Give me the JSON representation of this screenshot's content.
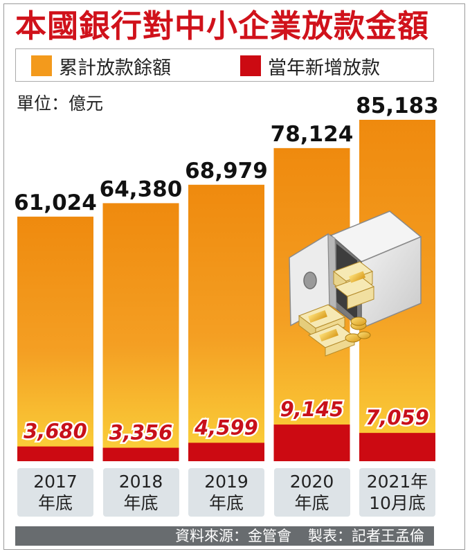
{
  "title": "本國銀行對中小企業放款金額",
  "legend": [
    {
      "label": "累計放款餘額",
      "color": "#f39a1c"
    },
    {
      "label": "當年新增放款",
      "color": "#cc0a12"
    }
  ],
  "unit": "單位：億元",
  "source": {
    "data_source": "資料來源：金管會",
    "made_by": "製表：記者王孟倫"
  },
  "chart_data": {
    "type": "bar",
    "title": "本國銀行對中小企業放款金額",
    "unit": "億元",
    "categories": [
      {
        "line1": "2017",
        "line2": "年底"
      },
      {
        "line1": "2018",
        "line2": "年底"
      },
      {
        "line1": "2019",
        "line2": "年底"
      },
      {
        "line1": "2020",
        "line2": "年底"
      },
      {
        "line1": "2021年",
        "line2": "10月底"
      }
    ],
    "series": [
      {
        "name": "累計放款餘額",
        "color": "#f39a1c",
        "values": [
          61024,
          64380,
          68979,
          78124,
          85183
        ],
        "labels": [
          "61,024",
          "64,380",
          "68,979",
          "78,124",
          "85,183"
        ]
      },
      {
        "name": "當年新增放款",
        "color": "#cc0a12",
        "values": [
          3680,
          3356,
          4599,
          9145,
          7059
        ],
        "labels": [
          "3,680",
          "3,356",
          "4,599",
          "9,145",
          "7,059"
        ]
      }
    ],
    "overlay": true,
    "legend_position": "top",
    "grid": false,
    "illustration": "safe-with-money-icon"
  }
}
